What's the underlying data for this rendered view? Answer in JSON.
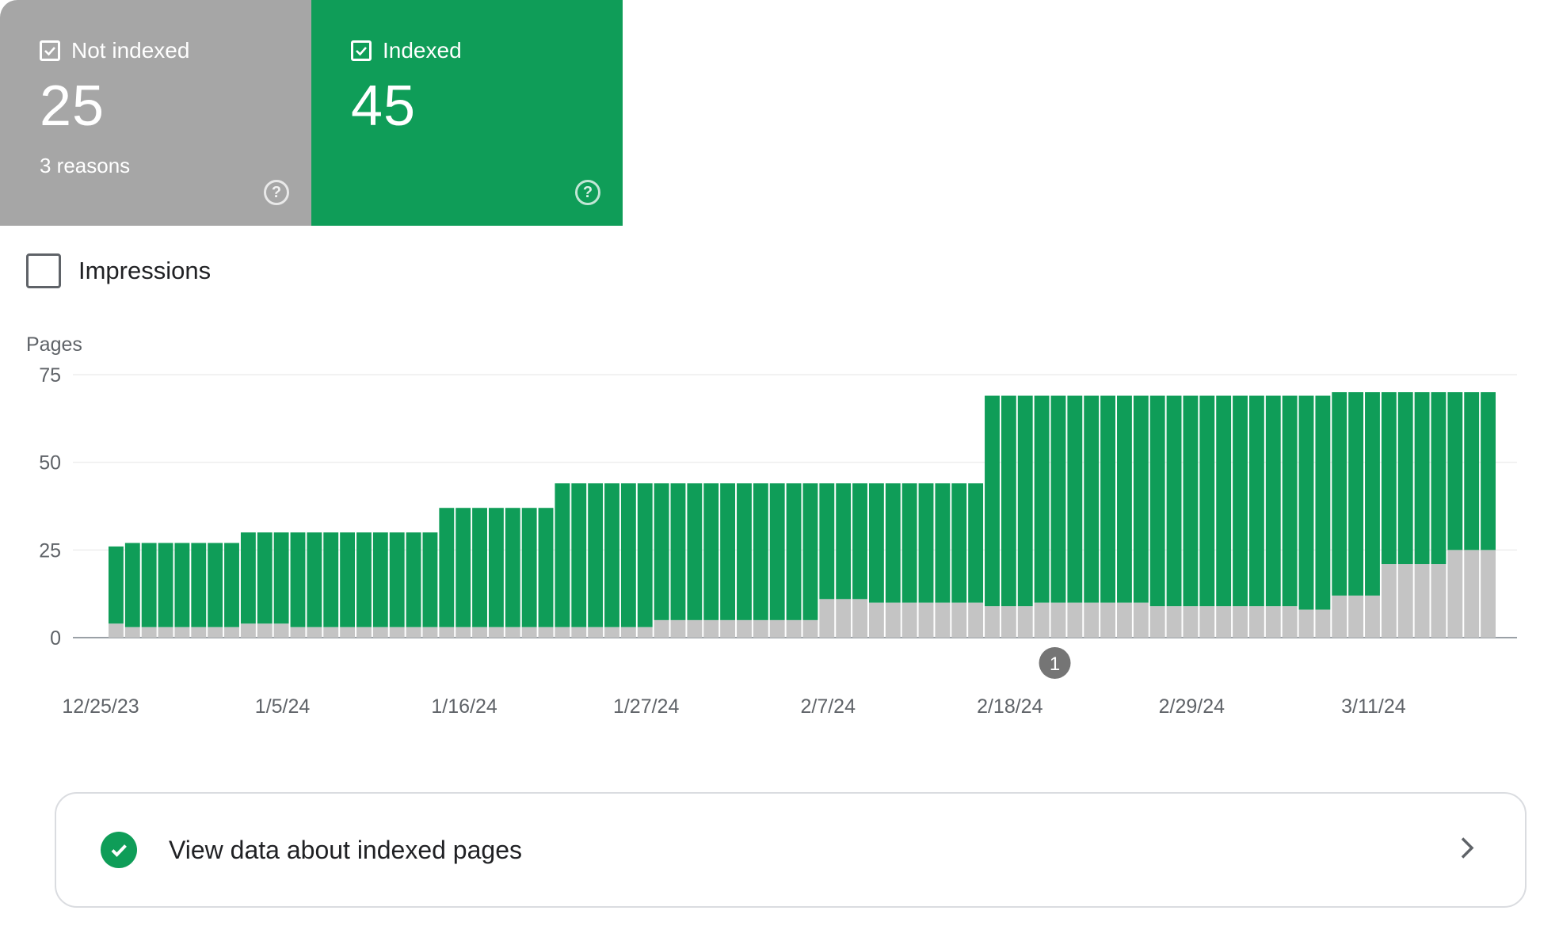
{
  "summary": {
    "not_indexed": {
      "label": "Not indexed",
      "value": "25",
      "sub": "3 reasons",
      "color": "#a6a6a6",
      "checked": true
    },
    "indexed": {
      "label": "Indexed",
      "value": "45",
      "color": "#0f9d58",
      "checked": true
    }
  },
  "impressions": {
    "label": "Impressions",
    "checked": false
  },
  "chart_data": {
    "type": "bar",
    "stacked": true,
    "ylabel": "Pages",
    "ylim": [
      0,
      75
    ],
    "yticks": [
      0,
      25,
      50,
      75
    ],
    "grid": true,
    "x_tick_labels": [
      "12/25/23",
      "1/5/24",
      "1/16/24",
      "1/27/24",
      "2/7/24",
      "2/18/24",
      "2/29/24",
      "3/11/24"
    ],
    "series": [
      {
        "color": "#c4c4c4",
        "values": [
          4,
          3,
          3,
          3,
          3,
          3,
          3,
          3,
          4,
          4,
          4,
          3,
          3,
          3,
          3,
          3,
          3,
          3,
          3,
          3,
          3,
          3,
          3,
          3,
          3,
          3,
          3,
          3,
          3,
          3,
          3,
          3,
          3,
          5,
          5,
          5,
          5,
          5,
          5,
          5,
          5,
          5,
          5,
          11,
          11,
          11,
          10,
          10,
          10,
          10,
          10,
          10,
          10,
          9,
          9,
          9,
          10,
          10,
          10,
          10,
          10,
          10,
          10,
          9,
          9,
          9,
          9,
          9,
          9,
          9,
          9,
          9,
          8,
          8,
          12,
          12,
          12,
          21,
          21,
          21,
          21,
          25,
          25,
          25
        ]
      },
      {
        "color": "#0f9d58",
        "values": [
          22,
          24,
          24,
          24,
          24,
          24,
          24,
          24,
          26,
          26,
          26,
          27,
          27,
          27,
          27,
          27,
          27,
          27,
          27,
          27,
          34,
          34,
          34,
          34,
          34,
          34,
          34,
          41,
          41,
          41,
          41,
          41,
          41,
          39,
          39,
          39,
          39,
          39,
          39,
          39,
          39,
          39,
          39,
          33,
          33,
          33,
          34,
          34,
          34,
          34,
          34,
          34,
          34,
          60,
          60,
          60,
          59,
          59,
          59,
          59,
          59,
          59,
          59,
          60,
          60,
          60,
          60,
          60,
          60,
          60,
          60,
          60,
          61,
          61,
          58,
          58,
          58,
          49,
          49,
          49,
          49,
          45,
          45,
          45
        ]
      }
    ],
    "annotations": [
      {
        "label": "1",
        "x": "2/20/24"
      }
    ]
  },
  "footer": {
    "label": "View data about indexed pages"
  }
}
